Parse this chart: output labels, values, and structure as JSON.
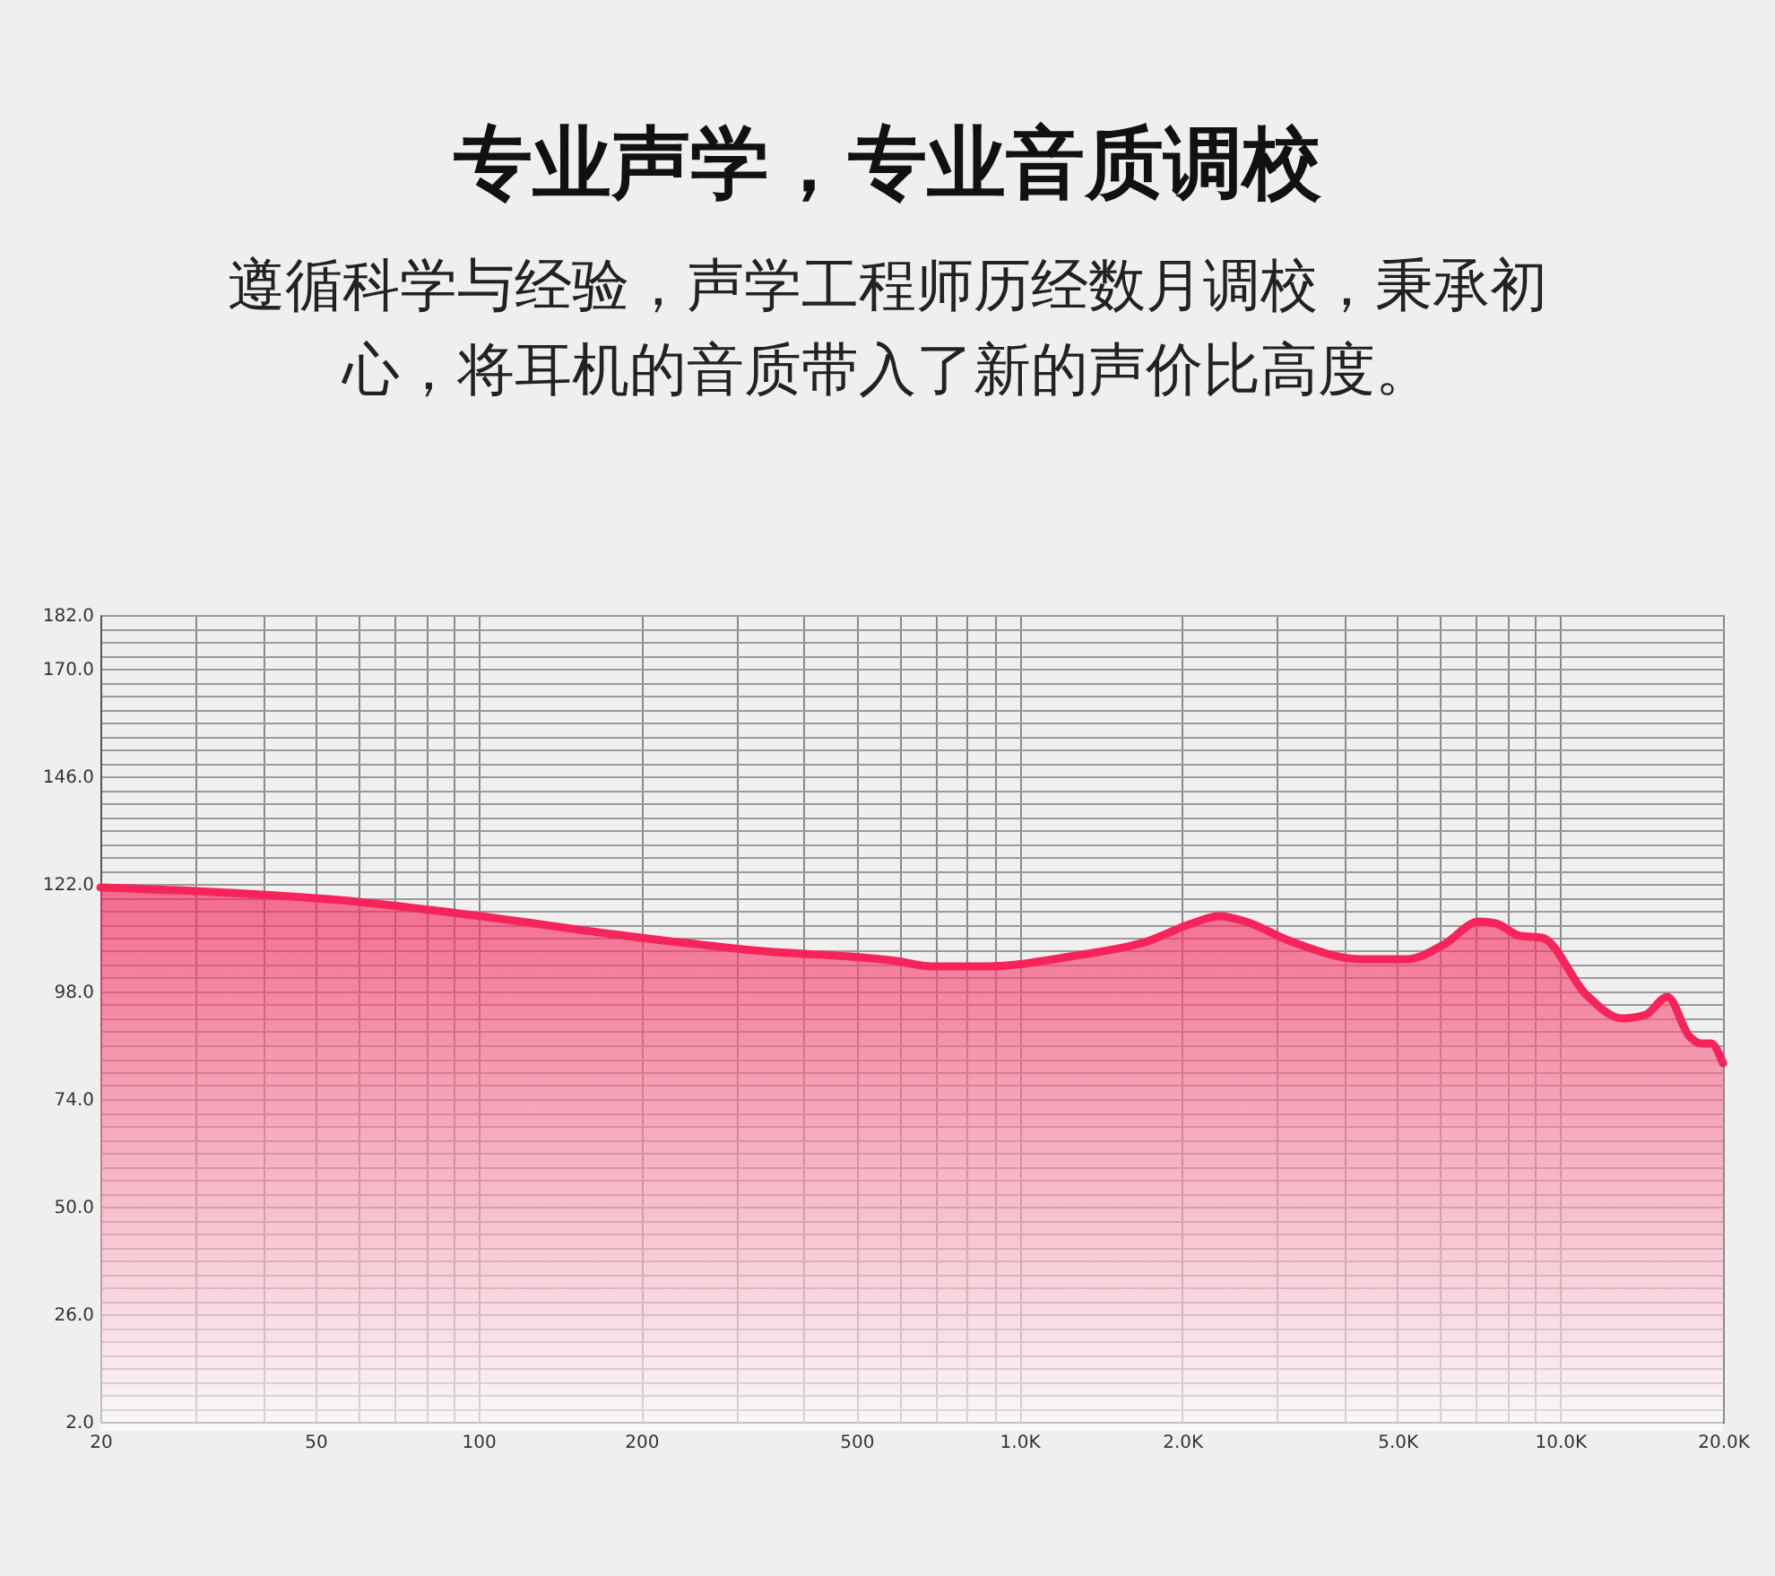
{
  "chart_data": {
    "type": "area",
    "title": "专业声学，专业音质调校",
    "subtitle": "遵循科学与经验，声学工程师历经数月调校，秉承初心，将耳机的音质带入了新的声价比高度。",
    "log": "x",
    "grid": true,
    "xlim": [
      20,
      20000
    ],
    "ylim": [
      2,
      182
    ],
    "xticks": [
      20,
      {
        "value": 30,
        "label": null
      },
      {
        "value": 40,
        "label": null
      },
      50,
      {
        "value": 60,
        "label": null
      },
      {
        "value": 70,
        "label": null
      },
      {
        "value": 80,
        "label": null
      },
      {
        "value": 90,
        "label": null
      },
      100,
      200,
      {
        "value": 300,
        "label": null
      },
      {
        "value": 400,
        "label": null
      },
      500,
      {
        "value": 600,
        "label": null
      },
      {
        "value": 700,
        "label": null
      },
      {
        "value": 800,
        "label": null
      },
      {
        "value": 900,
        "label": null
      },
      {
        "value": 1000,
        "label": "1.0K"
      },
      {
        "value": 2000,
        "label": "2.0K"
      },
      {
        "value": 3000,
        "label": null
      },
      {
        "value": 4000,
        "label": null
      },
      {
        "value": 5000,
        "label": "5.0K"
      },
      {
        "value": 6000,
        "label": null
      },
      {
        "value": 7000,
        "label": null
      },
      {
        "value": 8000,
        "label": null
      },
      {
        "value": 9000,
        "label": null
      },
      {
        "value": 10000,
        "label": "10.0K"
      },
      {
        "value": 20000,
        "label": "20.0K"
      }
    ],
    "yticks": [
      {
        "value": 2,
        "label": "2.0"
      },
      {
        "value": 5,
        "label": null
      },
      {
        "value": 8,
        "label": null
      },
      {
        "value": 11,
        "label": null
      },
      {
        "value": 14,
        "label": null
      },
      {
        "value": 17,
        "label": null
      },
      {
        "value": 20,
        "label": null
      },
      {
        "value": 23,
        "label": null
      },
      {
        "value": 26,
        "label": "26.0"
      },
      {
        "value": 29,
        "label": null
      },
      {
        "value": 32,
        "label": null
      },
      {
        "value": 35,
        "label": null
      },
      {
        "value": 38,
        "label": null
      },
      {
        "value": 41,
        "label": null
      },
      {
        "value": 44,
        "label": null
      },
      {
        "value": 47,
        "label": null
      },
      {
        "value": 50,
        "label": "50.0"
      },
      {
        "value": 53,
        "label": null
      },
      {
        "value": 56,
        "label": null
      },
      {
        "value": 59,
        "label": null
      },
      {
        "value": 62,
        "label": null
      },
      {
        "value": 65,
        "label": null
      },
      {
        "value": 68,
        "label": null
      },
      {
        "value": 71,
        "label": null
      },
      {
        "value": 74,
        "label": "74.0"
      },
      {
        "value": 77,
        "label": null
      },
      {
        "value": 80,
        "label": null
      },
      {
        "value": 83,
        "label": null
      },
      {
        "value": 86,
        "label": null
      },
      {
        "value": 89,
        "label": null
      },
      {
        "value": 92,
        "label": null
      },
      {
        "value": 95,
        "label": null
      },
      {
        "value": 98,
        "label": "98.0"
      },
      {
        "value": 101,
        "label": null
      },
      {
        "value": 104,
        "label": null
      },
      {
        "value": 107,
        "label": null
      },
      {
        "value": 110,
        "label": null
      },
      {
        "value": 113,
        "label": null
      },
      {
        "value": 116,
        "label": null
      },
      {
        "value": 119,
        "label": null
      },
      {
        "value": 122,
        "label": "122.0"
      },
      {
        "value": 125,
        "label": null
      },
      {
        "value": 128,
        "label": null
      },
      {
        "value": 131,
        "label": null
      },
      {
        "value": 134,
        "label": null
      },
      {
        "value": 137,
        "label": null
      },
      {
        "value": 140,
        "label": null
      },
      {
        "value": 143,
        "label": null
      },
      {
        "value": 146,
        "label": "146.0"
      },
      {
        "value": 149,
        "label": null
      },
      {
        "value": 152,
        "label": null
      },
      {
        "value": 155,
        "label": null
      },
      {
        "value": 158,
        "label": null
      },
      {
        "value": 161,
        "label": null
      },
      {
        "value": 164,
        "label": null
      },
      {
        "value": 167,
        "label": null
      },
      {
        "value": 170,
        "label": "170.0"
      },
      {
        "value": 173,
        "label": null
      },
      {
        "value": 176,
        "label": null
      },
      {
        "value": 179,
        "label": null
      },
      {
        "value": 182,
        "label": "182.0"
      }
    ],
    "x": [
      20,
      30,
      60,
      95,
      188,
      321,
      593,
      690,
      867,
      1271,
      1726,
      2086,
      2340,
      2620,
      3176,
      4307,
      5210,
      6080,
      7080,
      7600,
      8440,
      9250,
      11190,
      13030,
      14380,
      15780,
      17330,
      18230,
      19000,
      20000
    ],
    "series": [
      {
        "color": "#f5245a",
        "values": [
          121.2,
          120.4,
          118,
          115.2,
          110.4,
          107.2,
          104.8,
          103.6,
          103.6,
          106,
          109.2,
          113.2,
          114.8,
          113.6,
          109.2,
          105.2,
          105.2,
          108.4,
          113.6,
          113.2,
          110.4,
          110,
          97.2,
          92,
          92.8,
          96.8,
          88,
          86.4,
          86.4,
          82
        ]
      }
    ]
  }
}
